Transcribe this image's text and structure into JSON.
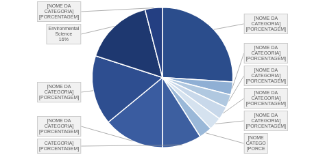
{
  "chart_data": {
    "type": "pie",
    "categories": [
      "[NOME DA\nCATEGORIA]\n[PORCENTAGEM]",
      "[NOME DA\nCATEGORIA]\n[PORCENTAGEM]",
      "[NOME DA\nCATEGORIA]\n[PORCENTAGEM]",
      "[NOME DA\nCATEGORIA]\n[PORCENTAGEM]",
      "[NOME DA\nCATEGORIA]\n[PORCENTAGEM]",
      "[NOME\nCATEGO\n[PORCE",
      "CATEGORIA]\n[PORCENTAGEM]",
      "[NOME DA\nCATEGORIA]\n[PORCENTAGEM]",
      "[NOME DA\nCATEGORIA]\n[PORCENTAGEM]",
      "Environmental\nScience\n16%",
      "[NOME DA\nCATEGORIA]\n[PORCENTAGEM]"
    ],
    "values": [
      26,
      3,
      3,
      3,
      3,
      3,
      9,
      14,
      16,
      16,
      4
    ],
    "colors": [
      "#2b4d8c",
      "#8fafd4",
      "#b0c8e0",
      "#c8d8ea",
      "#d5e2ef",
      "#9ab8d8",
      "#3d5fa0",
      "#3a5ca0",
      "#2e4e90",
      "#1e3870",
      "#243f82"
    ]
  }
}
